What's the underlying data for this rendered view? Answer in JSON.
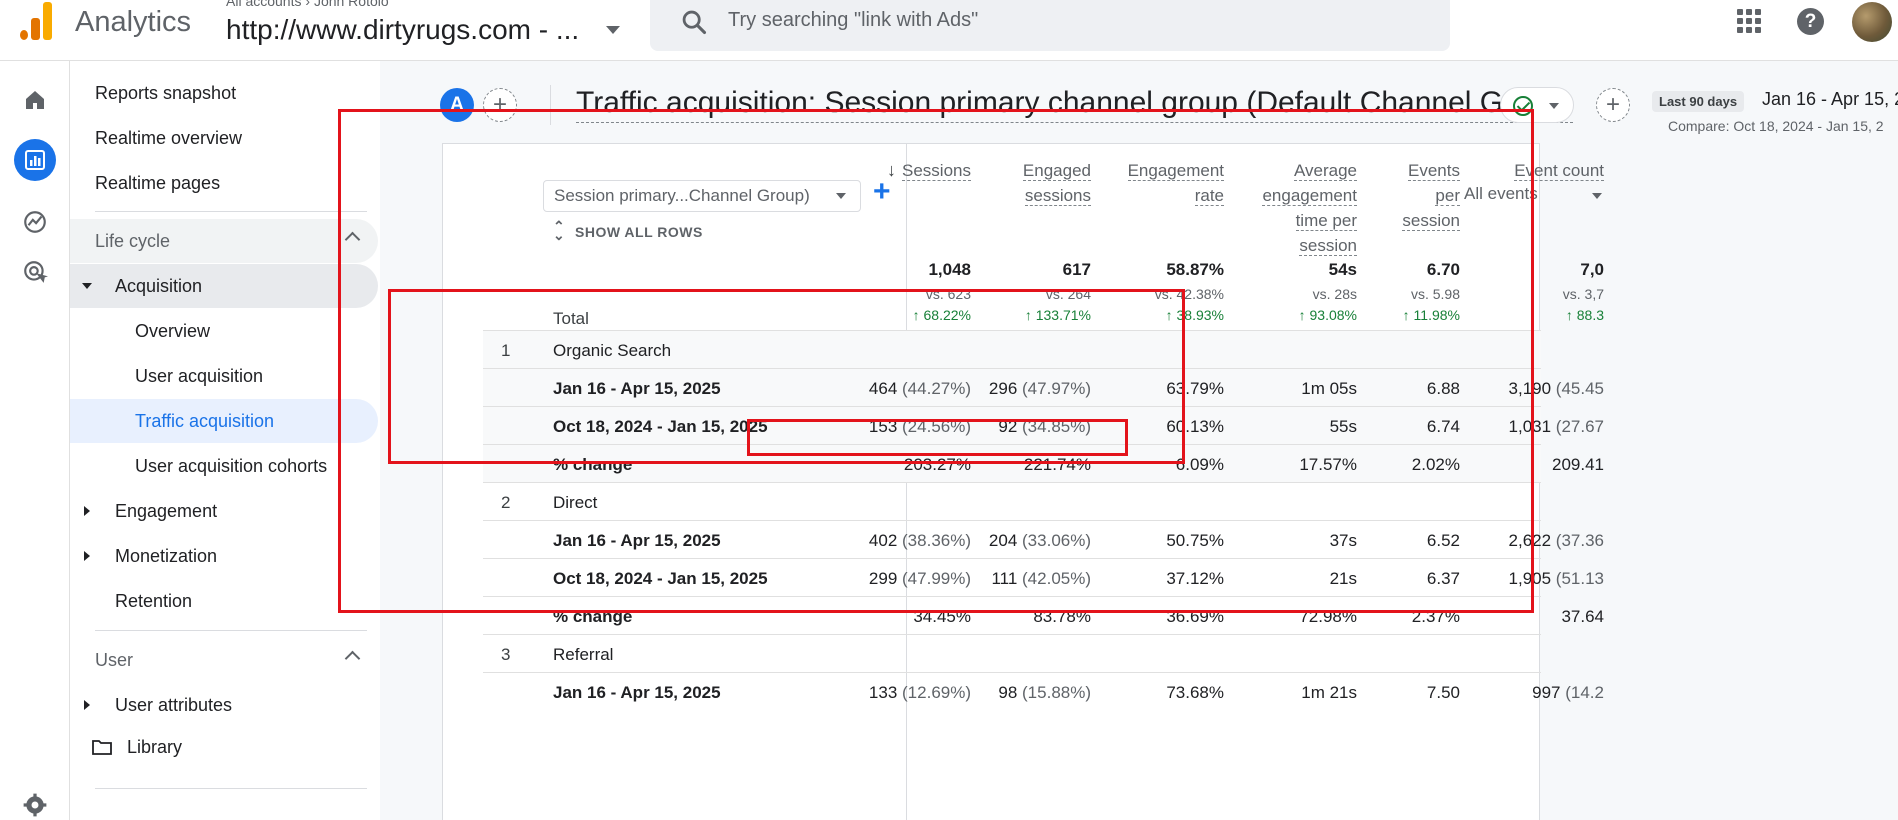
{
  "header": {
    "app_name": "Analytics",
    "breadcrumb_accounts": "All accounts",
    "breadcrumb_user": "John Rotolo",
    "property_name": "http://www.dirtyrugs.com - ...",
    "search_placeholder": "Try searching \"link with Ads\"",
    "icons": [
      "apps-grid-icon",
      "help-icon",
      "account-avatar"
    ],
    "logo_colors": [
      "#f9ab00",
      "#e37400"
    ]
  },
  "rail": {
    "icons": [
      "home-icon",
      "reports-icon",
      "explore-icon",
      "advertising-icon",
      "settings-icon"
    ],
    "active_color": "#1a73e8"
  },
  "nav": {
    "reports_snapshot": "Reports snapshot",
    "realtime_overview": "Realtime overview",
    "realtime_pages": "Realtime pages",
    "life_cycle": "Life cycle",
    "acquisition": "Acquisition",
    "overview": "Overview",
    "user_acquisition": "User acquisition",
    "traffic_acquisition": "Traffic acquisition",
    "user_acquisition_cohorts": "User acquisition cohorts",
    "engagement": "Engagement",
    "monetization": "Monetization",
    "retention": "Retention",
    "user": "User",
    "user_attributes": "User attributes",
    "library": "Library"
  },
  "report": {
    "segment_letter": "A",
    "title": "Traffic acquisition: Session primary channel group (Default Channel Group)",
    "date_badge": "Last 90 days",
    "date_range": "Jan 16 - Apr 15, 2",
    "compare_range": "Compare: Oct 18, 2024 - Jan 15, 2",
    "accent_color": "#1a73e8",
    "annotation_color": "#e3131b"
  },
  "table": {
    "dimension_select": "Session primary...Channel Group)",
    "show_all_rows": "SHOW ALL ROWS",
    "columns": [
      {
        "lines": [
          "Sessions"
        ],
        "sorted": true
      },
      {
        "lines": [
          "Engaged",
          "sessions"
        ]
      },
      {
        "lines": [
          "Engagement",
          "rate"
        ]
      },
      {
        "lines": [
          "Average",
          "engagement",
          "time per",
          "session"
        ]
      },
      {
        "lines": [
          "Events",
          "per",
          "session"
        ]
      },
      {
        "lines": [
          "Event count"
        ],
        "sub": "All events"
      }
    ],
    "total": {
      "label": "Total",
      "values": [
        "1,048",
        "617",
        "58.87%",
        "54s",
        "6.70",
        "7,0"
      ],
      "vs": [
        "vs. 623",
        "vs. 264",
        "vs. 42.38%",
        "vs. 28s",
        "vs. 5.98",
        "vs. 3,7"
      ],
      "change": [
        "↑ 68.22%",
        "↑ 133.71%",
        "↑ 38.93%",
        "↑ 93.08%",
        "↑ 11.98%",
        "↑ 88.3"
      ]
    },
    "rows": [
      {
        "index": "1",
        "label": "Organic Search",
        "type": "group"
      },
      {
        "label": "Jan 16 - Apr 15, 2025",
        "type": "data",
        "cells": [
          [
            "464",
            " (44.27%)"
          ],
          [
            "296",
            " (47.97%)"
          ],
          [
            "63.79%",
            ""
          ],
          [
            "1m 05s",
            ""
          ],
          [
            "6.88",
            ""
          ],
          [
            "3,190",
            " (45.45"
          ]
        ]
      },
      {
        "label": "Oct 18, 2024 - Jan 15, 2025",
        "type": "data",
        "cells": [
          [
            "153",
            " (24.56%)"
          ],
          [
            "92",
            " (34.85%)"
          ],
          [
            "60.13%",
            ""
          ],
          [
            "55s",
            ""
          ],
          [
            "6.74",
            ""
          ],
          [
            "1,031",
            " (27.67"
          ]
        ]
      },
      {
        "label": "% change",
        "type": "change",
        "cells": [
          [
            "203.27%",
            ""
          ],
          [
            "221.74%",
            ""
          ],
          [
            "6.09%",
            ""
          ],
          [
            "17.57%",
            ""
          ],
          [
            "2.02%",
            ""
          ],
          [
            "209.41",
            ""
          ]
        ]
      },
      {
        "index": "2",
        "label": "Direct",
        "type": "group"
      },
      {
        "label": "Jan 16 - Apr 15, 2025",
        "type": "data",
        "cells": [
          [
            "402",
            " (38.36%)"
          ],
          [
            "204",
            " (33.06%)"
          ],
          [
            "50.75%",
            ""
          ],
          [
            "37s",
            ""
          ],
          [
            "6.52",
            ""
          ],
          [
            "2,622",
            " (37.36"
          ]
        ]
      },
      {
        "label": "Oct 18, 2024 - Jan 15, 2025",
        "type": "data",
        "cells": [
          [
            "299",
            " (47.99%)"
          ],
          [
            "111",
            " (42.05%)"
          ],
          [
            "37.12%",
            ""
          ],
          [
            "21s",
            ""
          ],
          [
            "6.37",
            ""
          ],
          [
            "1,905",
            " (51.13"
          ]
        ]
      },
      {
        "label": "% change",
        "type": "change",
        "cells": [
          [
            "34.45%",
            ""
          ],
          [
            "83.78%",
            ""
          ],
          [
            "36.69%",
            ""
          ],
          [
            "72.98%",
            ""
          ],
          [
            "2.37%",
            ""
          ],
          [
            "37.64",
            ""
          ]
        ]
      },
      {
        "index": "3",
        "label": "Referral",
        "type": "group"
      },
      {
        "label": "Jan 16 - Apr 15, 2025",
        "type": "data",
        "cells": [
          [
            "133",
            " (12.69%)"
          ],
          [
            "98",
            " (15.88%)"
          ],
          [
            "73.68%",
            ""
          ],
          [
            "1m 21s",
            ""
          ],
          [
            "7.50",
            ""
          ],
          [
            "997",
            " (14.2"
          ]
        ]
      }
    ]
  }
}
